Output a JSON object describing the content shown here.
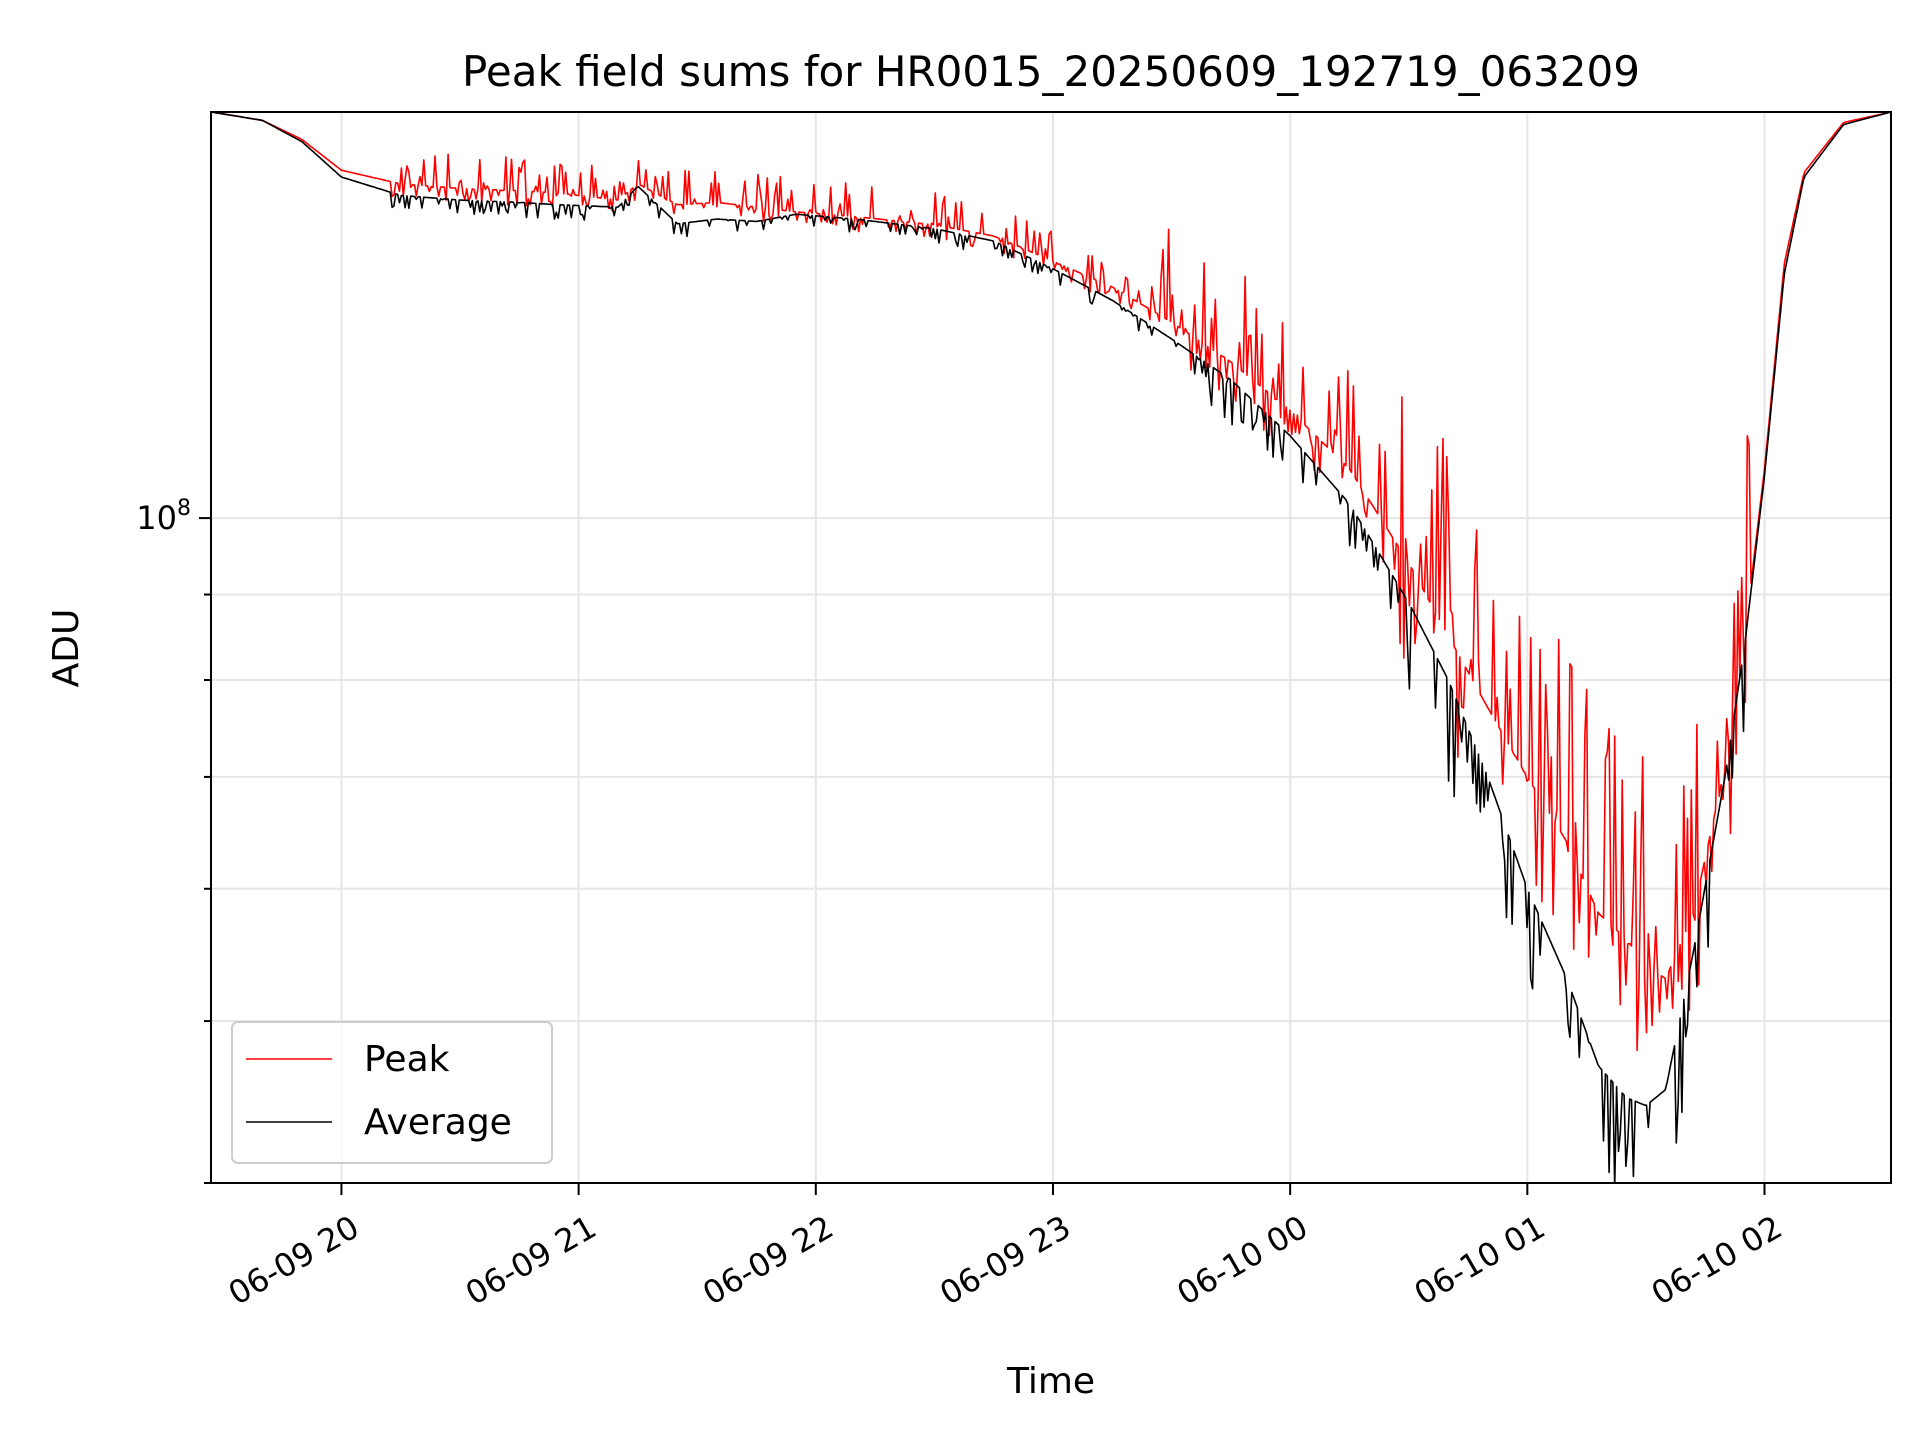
{
  "chart_data": {
    "type": "line",
    "title": "Peak field sums for HR0015_20250609_192719_063209",
    "xlabel": "Time",
    "ylabel": "ADU",
    "x_scale": "time",
    "y_scale": "log",
    "x_ticks": [
      "06-09 20",
      "06-09 21",
      "06-09 22",
      "06-09 23",
      "06-10 00",
      "06-10 01",
      "06-10 02"
    ],
    "y_major_tick_label": "10^8",
    "xlim": [
      "2025-06-09 19:27",
      "2025-06-10 02:32"
    ],
    "ylim": [
      40000000,
      175000000
    ],
    "grid": true,
    "legend": {
      "position": "lower-left",
      "entries": [
        "Peak",
        "Average"
      ]
    },
    "colors": {
      "peak": "#ff0000",
      "average": "#000000",
      "grid": "#e6e6e6"
    },
    "series": [
      {
        "name": "Average",
        "color": "#000000",
        "x": [
          "2025-06-09 19:27",
          "2025-06-09 19:40",
          "2025-06-09 19:50",
          "2025-06-09 20:00",
          "2025-06-09 20:15",
          "2025-06-09 20:30",
          "2025-06-09 20:45",
          "2025-06-09 20:55",
          "2025-06-09 21:10",
          "2025-06-09 21:15",
          "2025-06-09 21:25",
          "2025-06-09 21:35",
          "2025-06-09 21:45",
          "2025-06-09 21:55",
          "2025-06-09 22:10",
          "2025-06-09 22:30",
          "2025-06-09 22:45",
          "2025-06-09 23:00",
          "2025-06-09 23:15",
          "2025-06-09 23:30",
          "2025-06-09 23:45",
          "2025-06-10 00:00",
          "2025-06-10 00:15",
          "2025-06-10 00:30",
          "2025-06-10 00:40",
          "2025-06-10 00:50",
          "2025-06-10 01:00",
          "2025-06-10 01:10",
          "2025-06-10 01:18",
          "2025-06-10 01:25",
          "2025-06-10 01:30",
          "2025-06-10 01:35",
          "2025-06-10 01:42",
          "2025-06-10 01:50",
          "2025-06-10 01:55",
          "2025-06-10 02:00",
          "2025-06-10 02:05",
          "2025-06-10 02:10",
          "2025-06-10 02:20",
          "2025-06-10 02:32"
        ],
        "y": [
          175000000,
          173000000,
          168000000,
          160000000,
          156000000,
          155000000,
          154500000,
          154000000,
          153500000,
          158000000,
          150000000,
          151000000,
          150500000,
          152000000,
          151000000,
          149000000,
          146500000,
          141000000,
          135000000,
          128000000,
          121000000,
          112000000,
          102000000,
          89000000,
          80000000,
          70000000,
          60000000,
          53000000,
          47000000,
          45000000,
          44500000,
          45500000,
          55000000,
          70000000,
          84000000,
          106000000,
          140000000,
          160000000,
          172000000,
          175000000
        ]
      },
      {
        "name": "Peak",
        "color": "#ff0000",
        "x": [
          "2025-06-09 19:27",
          "2025-06-09 19:40",
          "2025-06-09 19:50",
          "2025-06-09 20:00",
          "2025-06-09 20:15",
          "2025-06-09 20:30",
          "2025-06-09 20:45",
          "2025-06-09 20:55",
          "2025-06-09 21:10",
          "2025-06-09 21:15",
          "2025-06-09 21:25",
          "2025-06-09 21:35",
          "2025-06-09 21:45",
          "2025-06-09 21:55",
          "2025-06-09 22:10",
          "2025-06-09 22:30",
          "2025-06-09 22:45",
          "2025-06-09 23:00",
          "2025-06-09 23:15",
          "2025-06-09 23:30",
          "2025-06-09 23:45",
          "2025-06-10 00:00",
          "2025-06-10 00:15",
          "2025-06-10 00:30",
          "2025-06-10 00:40",
          "2025-06-10 00:50",
          "2025-06-10 01:00",
          "2025-06-10 01:10",
          "2025-06-10 01:18",
          "2025-06-10 01:25",
          "2025-06-10 01:30",
          "2025-06-10 01:35",
          "2025-06-10 01:42",
          "2025-06-10 01:50",
          "2025-06-10 01:55",
          "2025-06-10 02:00",
          "2025-06-10 02:05",
          "2025-06-10 02:10",
          "2025-06-10 02:20",
          "2025-06-10 02:32"
        ],
        "y": [
          175000000,
          173000000,
          168500000,
          161500000,
          158500000,
          157500000,
          157000000,
          156500000,
          155000000,
          158500000,
          154000000,
          154500000,
          153500000,
          152500000,
          151500000,
          149800000,
          147500000,
          142500000,
          137500000,
          131000000,
          124000000,
          116000000,
          107000000,
          94000000,
          85000000,
          77000000,
          70000000,
          64000000,
          58000000,
          56000000,
          54000000,
          53000000,
          58000000,
          71000000,
          85000000,
          107000000,
          142000000,
          161000000,
          172500000,
          175000000
        ]
      }
    ]
  }
}
